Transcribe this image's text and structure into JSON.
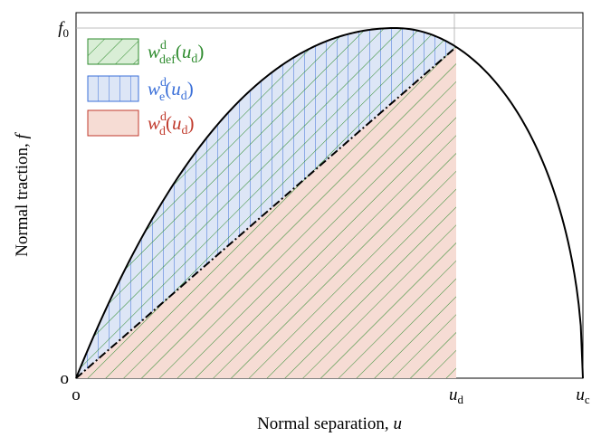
{
  "chart_data": {
    "type": "area",
    "xlabel": "Normal separation, u",
    "xlabel_text": "Normal separation, ",
    "xlabel_var": "u",
    "ylabel": "Normal traction, f",
    "ylabel_text": "Normal traction, ",
    "ylabel_var": "f",
    "x_ticks": [
      {
        "label": "o",
        "sub": "",
        "value": 0
      },
      {
        "label": "u",
        "sub": "d",
        "value": 0.75
      },
      {
        "label": "u",
        "sub": "c",
        "value": 1.0
      }
    ],
    "y_ticks": [
      {
        "label": "o",
        "sub": "",
        "value": 0
      },
      {
        "label": "f",
        "sub": "0",
        "value": 1.0
      }
    ],
    "xlim": [
      0,
      1
    ],
    "ylim": [
      0,
      1.05
    ],
    "curve_peak_at": 0.63,
    "u_d": 0.75,
    "regions": [
      {
        "name": "w^d_def(u_d)",
        "base": "w",
        "sup": "d",
        "sub": "def",
        "arg": "u",
        "argsub": "d",
        "color": "#2e8b2e",
        "fill": "#d9eed6",
        "pattern": "diagonal"
      },
      {
        "name": "w^d_e(u_d)",
        "base": "w",
        "sup": "d",
        "sub": "e",
        "arg": "u",
        "argsub": "d",
        "color": "#3a6fd8",
        "fill": "#dde6f6",
        "pattern": "vertical"
      },
      {
        "name": "w^d_d(u_d)",
        "base": "w",
        "sup": "d",
        "sub": "d",
        "arg": "u",
        "argsub": "d",
        "color": "#c0392b",
        "fill": "#f6dcd4",
        "pattern": "solid"
      }
    ],
    "grid": false,
    "legend_position": "top-left"
  }
}
